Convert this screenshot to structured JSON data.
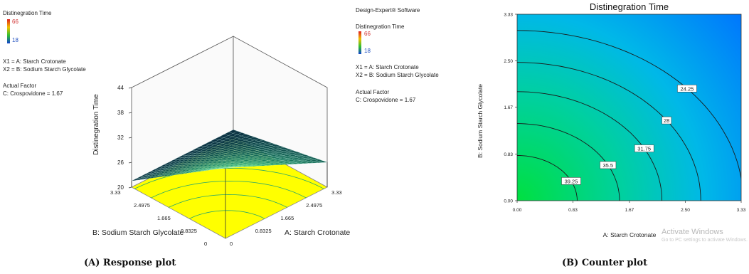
{
  "left_panel": {
    "title": "Distinegration Time",
    "legend_high": "66",
    "legend_low": "18",
    "x1_def": "X1 = A: Starch Crotonate",
    "x2_def": "X2 = B: Sodium Starch Glycolate",
    "actual_factor": "Actual Factor",
    "factor_value": "C: Crospovidone = 1.67"
  },
  "middle_panel": {
    "software": "Design-Expert® Software",
    "title": "Distinegration Time",
    "legend_high": "66",
    "legend_low": "18",
    "x1_def": "X1 = A: Starch Crotonate",
    "x2_def": "X2 = B: Sodium Starch Glycolate",
    "actual_factor": "Actual Factor",
    "factor_value": "C: Crospovidone = 1.67"
  },
  "captions": {
    "a": "(A) Response plot",
    "b": "(B) Counter plot"
  },
  "watermark": {
    "line1": "Activate Windows",
    "line2": "Go to PC settings to activate Windows."
  },
  "colors": {
    "floor": "#ffff00",
    "surface_high": "#22b573",
    "surface_low": "#0a2a40",
    "contour_blue": "#0070ff",
    "contour_green": "#00e040"
  },
  "chart_data": [
    {
      "type": "surface",
      "zlabel": "Distinegration Time",
      "xlabel": "A: Starch Crotonate",
      "ylabel": "B: Sodium Starch Glycolate",
      "x_ticks": [
        "0",
        "0.8325",
        "1.665",
        "2.4975",
        "3.33"
      ],
      "y_ticks": [
        "0",
        "0.8325",
        "1.665",
        "2.4975",
        "3.33"
      ],
      "z_ticks": [
        "20",
        "26",
        "32",
        "38",
        "44"
      ],
      "zlim": [
        20,
        44
      ],
      "corner_values": {
        "a_low_b_low": 37,
        "a_low_b_high": 21.5,
        "a_high_b_low": 26,
        "a_high_b_high": 21.5
      },
      "peak_value": 34
    },
    {
      "type": "contour",
      "title": "Distinegration Time",
      "xlabel": "A: Starch Crotonate",
      "ylabel": "B: Sodium Starch Glycolate",
      "x_ticks": [
        "0.00",
        "0.83",
        "1.67",
        "2.50",
        "3.33"
      ],
      "y_ticks": [
        "0.00",
        "0.83",
        "1.67",
        "2.50",
        "3.33"
      ],
      "xlim": [
        0,
        3.33
      ],
      "ylim": [
        0,
        3.33
      ],
      "levels": [
        {
          "label": "24.25",
          "value": 24.25,
          "radius": 3.2
        },
        {
          "label": "28",
          "value": 28,
          "radius": 2.6
        },
        {
          "label": "31.75",
          "value": 31.75,
          "radius": 2.05
        },
        {
          "label": "35.5",
          "value": 35.5,
          "radius": 1.45
        },
        {
          "label": "39.25",
          "value": 39.25,
          "radius": 0.85
        }
      ]
    }
  ]
}
